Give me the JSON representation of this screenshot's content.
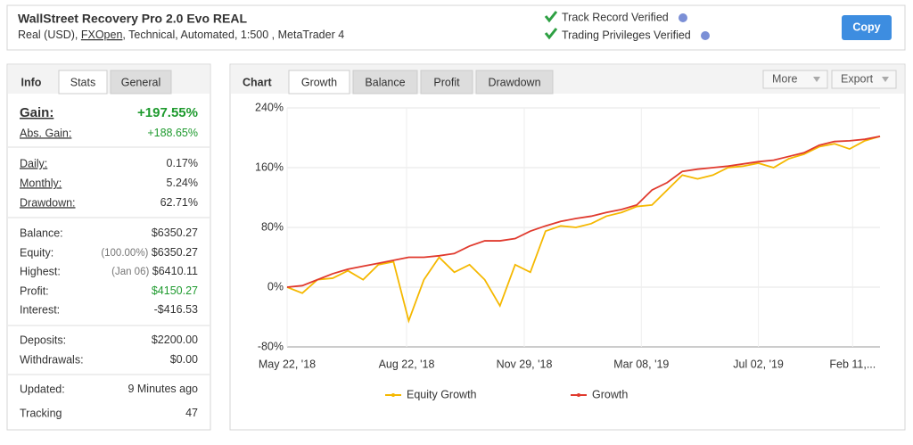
{
  "header": {
    "title": "WallStreet Recovery Pro 2.0 Evo REAL",
    "account": {
      "type": "Real (USD),",
      "broker": "FXOpen",
      "details": ", Technical, Automated, 1:500 , MetaTrader 4"
    },
    "verified": [
      "Track Record Verified",
      "Trading Privileges Verified"
    ],
    "copy": "Copy"
  },
  "info": {
    "tabs": [
      "Info",
      "Stats",
      "General"
    ],
    "groups": [
      [
        {
          "label": "Gain:",
          "value": "+197.55%",
          "color": "#1e9a2e"
        },
        {
          "label": "Abs. Gain:",
          "value": "+188.65%",
          "color": "#1e9a2e"
        }
      ],
      [
        {
          "label": "Daily:",
          "value": "0.17%"
        },
        {
          "label": "Monthly:",
          "value": "5.24%"
        },
        {
          "label": "Drawdown:",
          "value": "62.71%"
        }
      ],
      [
        {
          "label": "Balance:",
          "value": "$6350.27"
        },
        {
          "label": "Equity:",
          "note": "(100.00%)",
          "value": "$6350.27"
        },
        {
          "label": "Highest:",
          "note": "(Jan 06)",
          "value": "$6410.11"
        },
        {
          "label": "Profit:",
          "value": "$4150.27",
          "color": "#1e9a2e"
        },
        {
          "label": "Interest:",
          "value": "-$416.53"
        }
      ],
      [
        {
          "label": "Deposits:",
          "value": "$2200.00"
        },
        {
          "label": "Withdrawals:",
          "value": "$0.00"
        }
      ],
      [
        {
          "label": "Updated:",
          "value": "9 Minutes ago"
        },
        {
          "label": "Tracking",
          "value": "47"
        }
      ]
    ]
  },
  "chart": {
    "label": "Chart",
    "tabs": [
      "Growth",
      "Balance",
      "Profit",
      "Drawdown"
    ],
    "buttons": [
      "More",
      "Export"
    ],
    "chart_data": {
      "type": "line",
      "xlim": [
        0,
        39
      ],
      "xticks": [
        {
          "value": 0,
          "label": "May 22, '18"
        },
        {
          "value": 7.86,
          "label": "Aug 22, '18"
        },
        {
          "value": 15.6,
          "label": "Nov 29, '18"
        },
        {
          "value": 23.3,
          "label": "Mar 08, '19"
        },
        {
          "value": 31.0,
          "label": "Jul 02, '19"
        },
        {
          "value": 37.2,
          "label": "Feb 11,..."
        }
      ],
      "ylim": [
        -80,
        240
      ],
      "yticks": [
        {
          "value": -80,
          "label": "-80%"
        },
        {
          "value": 0,
          "label": "0%"
        },
        {
          "value": 80,
          "label": "80%"
        },
        {
          "value": 160,
          "label": "160%"
        },
        {
          "value": 240,
          "label": "240%"
        }
      ],
      "grid": true,
      "series": [
        {
          "name": "Equity Growth",
          "color": "#f5b800",
          "values": [
            0,
            -8,
            10,
            12,
            22,
            10,
            30,
            34,
            -45,
            10,
            40,
            20,
            30,
            10,
            -25,
            30,
            20,
            75,
            82,
            80,
            85,
            95,
            100,
            108,
            110,
            130,
            150,
            145,
            150,
            160,
            162,
            166,
            160,
            172,
            178,
            188,
            192,
            185,
            196,
            202
          ]
        },
        {
          "name": "Growth",
          "color": "#e03a2e",
          "values": [
            0,
            2,
            10,
            18,
            24,
            28,
            32,
            36,
            40,
            40,
            42,
            45,
            55,
            62,
            62,
            65,
            75,
            82,
            88,
            92,
            95,
            100,
            104,
            110,
            130,
            140,
            155,
            158,
            160,
            162,
            165,
            168,
            170,
            175,
            180,
            190,
            195,
            196,
            198,
            202
          ]
        }
      ]
    }
  }
}
